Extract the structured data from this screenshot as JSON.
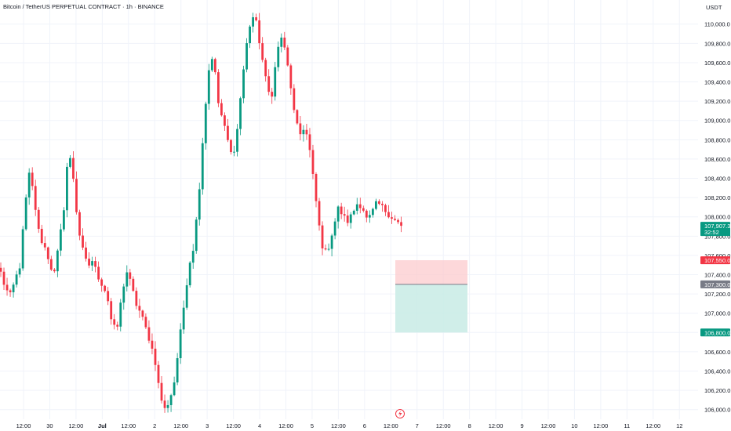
{
  "header": {
    "title": "Bitcoin / TetherUS PERPETUAL CONTRACT · 1h · BINANCE",
    "currency": "USDT"
  },
  "colors": {
    "up": "#089981",
    "down": "#f23645",
    "grid": "#f0f3fa",
    "text": "#131722",
    "stop_zone": "#fccbcd",
    "target_zone": "#c8ebe5",
    "entry_tag": "#787b86"
  },
  "chart_data": {
    "type": "candlestick",
    "ylim": [
      105900,
      110250
    ],
    "y_ticks": [
      "110,000.0",
      "109,800.0",
      "109,600.0",
      "109,400.0",
      "109,200.0",
      "109,000.0",
      "108,800.0",
      "108,600.0",
      "108,400.0",
      "108,200.0",
      "108,000.0",
      "107,800.0",
      "107,600.0",
      "107,400.0",
      "107,200.0",
      "107,000.0",
      "106,800.0",
      "106,600.0",
      "106,400.0",
      "106,200.0",
      "106,000.0"
    ],
    "x_ticks": [
      "12:00",
      "30",
      "12:00",
      "Jul",
      "12:00",
      "2",
      "12:00",
      "3",
      "12:00",
      "4",
      "12:00",
      "5",
      "12:00",
      "6",
      "12:00",
      "7",
      "12:00",
      "8",
      "12:00",
      "9",
      "12:00",
      "10",
      "12:00",
      "11",
      "12:00",
      "12"
    ],
    "x_tick_bold": [
      "Jul"
    ],
    "close_path": [
      107420,
      107250,
      107180,
      107350,
      107500,
      108100,
      108480,
      108150,
      107800,
      107700,
      107550,
      107380,
      107700,
      108050,
      108700,
      108420,
      107900,
      107650,
      107480,
      107550,
      107400,
      107300,
      107200,
      106900,
      106800,
      107150,
      107450,
      107300,
      107100,
      107000,
      106850,
      106700,
      106500,
      106150,
      106000,
      106100,
      106300,
      106700,
      107100,
      107500,
      107700,
      108200,
      108900,
      109500,
      109700,
      109200,
      109000,
      108800,
      108600,
      108900,
      109400,
      109800,
      110100,
      110000,
      109700,
      109400,
      109200,
      109600,
      109900,
      109700,
      109400,
      109000,
      108850,
      108950,
      108700,
      108300,
      107900,
      107600,
      107700,
      107900,
      108100,
      108000,
      107950,
      108050,
      108150,
      108100,
      107950,
      108050,
      108150,
      108100,
      108050,
      108000,
      107950,
      107907.3
    ],
    "last_price": "107,907.3",
    "countdown": "32:52",
    "position": {
      "stop_price": "107,550.0",
      "entry_price": "107,300.0",
      "target_price": "106,800.0",
      "stop": 107550,
      "entry": 107300,
      "target": 106800
    }
  }
}
